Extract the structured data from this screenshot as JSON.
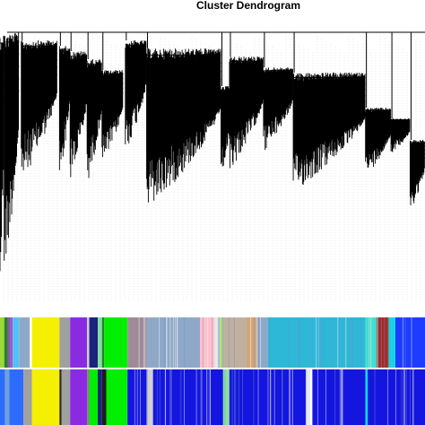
{
  "chart_data": {
    "type": "dendrogram",
    "title": "Cluster Dendrogram",
    "xlabel": "",
    "ylabel": "",
    "grid": false,
    "legend": "none",
    "branch_color": "#000000",
    "row1_name": "",
    "row2_name": "",
    "dendrogram": [
      {
        "start": 0.0,
        "end": 0.01,
        "top": 1.0,
        "bottom": 0.0,
        "density": 2
      },
      {
        "start": 0.01,
        "end": 0.045,
        "top": 1.0,
        "bottom": 0.09,
        "density": 8
      },
      {
        "start": 0.05,
        "end": 0.135,
        "top": 0.97,
        "bottom": 0.44,
        "density": 22
      },
      {
        "start": 0.14,
        "end": 0.165,
        "top": 0.95,
        "bottom": 0.45,
        "density": 7
      },
      {
        "start": 0.165,
        "end": 0.205,
        "top": 0.93,
        "bottom": 0.44,
        "density": 10
      },
      {
        "start": 0.205,
        "end": 0.24,
        "top": 0.9,
        "bottom": 0.43,
        "density": 9
      },
      {
        "start": 0.24,
        "end": 0.29,
        "top": 0.86,
        "bottom": 0.5,
        "density": 12
      },
      {
        "start": 0.295,
        "end": 0.345,
        "top": 0.97,
        "bottom": 0.55,
        "density": 12
      },
      {
        "start": 0.345,
        "end": 0.52,
        "top": 0.94,
        "bottom": 0.33,
        "density": 44
      },
      {
        "start": 0.52,
        "end": 0.545,
        "top": 0.8,
        "bottom": 0.45,
        "density": 7
      },
      {
        "start": 0.54,
        "end": 0.62,
        "top": 0.91,
        "bottom": 0.48,
        "density": 22
      },
      {
        "start": 0.62,
        "end": 0.69,
        "top": 0.87,
        "bottom": 0.55,
        "density": 18
      },
      {
        "start": 0.69,
        "end": 0.86,
        "top": 0.85,
        "bottom": 0.4,
        "density": 46
      },
      {
        "start": 0.86,
        "end": 0.92,
        "top": 0.72,
        "bottom": 0.46,
        "density": 15
      },
      {
        "start": 0.92,
        "end": 0.965,
        "top": 0.68,
        "bottom": 0.55,
        "density": 12
      },
      {
        "start": 0.965,
        "end": 1.0,
        "top": 0.6,
        "bottom": 0.33,
        "density": 9
      }
    ],
    "row1_colors": [
      {
        "color": "#9bd934",
        "from": 0.0,
        "to": 0.01
      },
      {
        "color": "#2e7d32",
        "from": 0.01,
        "to": 0.018
      },
      {
        "color": "#7b5ea7",
        "from": 0.018,
        "to": 0.025
      },
      {
        "color": "#b04fd6",
        "from": 0.025,
        "to": 0.03
      },
      {
        "color": "#4fc3f7",
        "from": 0.03,
        "to": 0.045
      },
      {
        "color": "#8fa8c8",
        "from": 0.045,
        "to": 0.07
      },
      {
        "color": "#f5f000",
        "from": 0.075,
        "to": 0.14
      },
      {
        "color": "#a0a0a0",
        "from": 0.14,
        "to": 0.165
      },
      {
        "color": "#8a2be2",
        "from": 0.165,
        "to": 0.205
      },
      {
        "color": "#d0d0d0",
        "from": 0.205,
        "to": 0.21
      },
      {
        "color": "#1a237e",
        "from": 0.21,
        "to": 0.23
      },
      {
        "color": "#7fe0a0",
        "from": 0.23,
        "to": 0.24
      },
      {
        "color": "#2e7d32",
        "from": 0.24,
        "to": 0.245
      },
      {
        "color": "#00ee00",
        "from": 0.245,
        "to": 0.3
      },
      {
        "color": "#a08a9a",
        "from": 0.3,
        "to": 0.345
      },
      {
        "color": "#8fa8c8",
        "from": 0.345,
        "to": 0.47
      },
      {
        "color": "#ffc0cb",
        "from": 0.47,
        "to": 0.505
      },
      {
        "color": "#e8e8e8",
        "from": 0.505,
        "to": 0.515
      },
      {
        "color": "#a8d878",
        "from": 0.515,
        "to": 0.525
      },
      {
        "color": "#c0b0a0",
        "from": 0.525,
        "to": 0.58
      },
      {
        "color": "#d2a679",
        "from": 0.58,
        "to": 0.605
      },
      {
        "color": "#8fa8c8",
        "from": 0.605,
        "to": 0.63
      },
      {
        "color": "#2eb8d8",
        "from": 0.63,
        "to": 0.86
      },
      {
        "color": "#40e0d0",
        "from": 0.86,
        "to": 0.885
      },
      {
        "color": "#8a8a8a",
        "from": 0.885,
        "to": 0.89
      },
      {
        "color": "#a52a2a",
        "from": 0.89,
        "to": 0.915
      },
      {
        "color": "#00e5ee",
        "from": 0.915,
        "to": 0.93
      },
      {
        "color": "#1e3cff",
        "from": 0.93,
        "to": 1.0
      }
    ],
    "row2_colors": [
      {
        "color": "#2e6cff",
        "from": 0.0,
        "to": 0.012
      },
      {
        "color": "#6fa0d8",
        "from": 0.012,
        "to": 0.022
      },
      {
        "color": "#2e6cff",
        "from": 0.022,
        "to": 0.055
      },
      {
        "color": "#a0a0a0",
        "from": 0.055,
        "to": 0.075
      },
      {
        "color": "#f5f000",
        "from": 0.075,
        "to": 0.14
      },
      {
        "color": "#2a2a2a",
        "from": 0.14,
        "to": 0.145
      },
      {
        "color": "#a0a0a0",
        "from": 0.145,
        "to": 0.165
      },
      {
        "color": "#8a2be2",
        "from": 0.165,
        "to": 0.205
      },
      {
        "color": "#808080",
        "from": 0.205,
        "to": 0.21
      },
      {
        "color": "#00ee00",
        "from": 0.21,
        "to": 0.23
      },
      {
        "color": "#1a237e",
        "from": 0.23,
        "to": 0.24
      },
      {
        "color": "#1c1c1c",
        "from": 0.24,
        "to": 0.25
      },
      {
        "color": "#00ee00",
        "from": 0.25,
        "to": 0.3
      },
      {
        "color": "#1515e0",
        "from": 0.3,
        "to": 0.345
      },
      {
        "color": "#d0d0d0",
        "from": 0.345,
        "to": 0.36
      },
      {
        "color": "#1515e0",
        "from": 0.36,
        "to": 0.525
      },
      {
        "color": "#8ae0a0",
        "from": 0.525,
        "to": 0.54
      },
      {
        "color": "#1515e0",
        "from": 0.54,
        "to": 0.72
      },
      {
        "color": "#ffffff",
        "from": 0.72,
        "to": 0.735
      },
      {
        "color": "#1515e0",
        "from": 0.735,
        "to": 0.86
      },
      {
        "color": "#00e5ee",
        "from": 0.86,
        "to": 0.865
      },
      {
        "color": "#1515e0",
        "from": 0.865,
        "to": 1.0
      }
    ]
  }
}
